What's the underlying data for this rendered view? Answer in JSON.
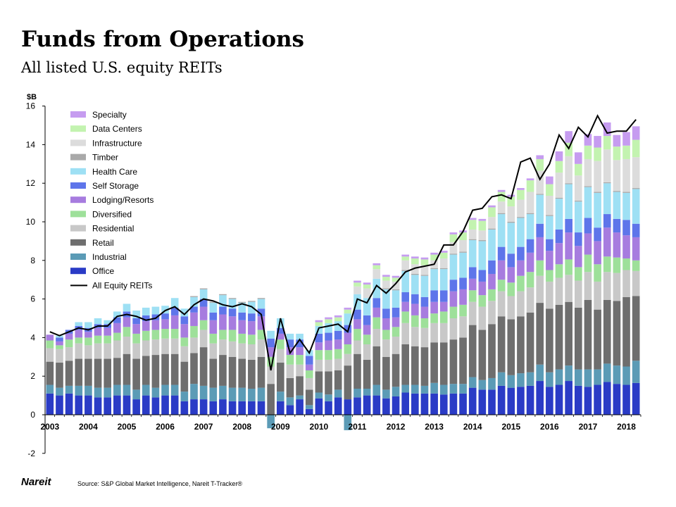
{
  "title": "Funds from Operations",
  "subtitle": "All listed U.S. equity REITs",
  "footer": {
    "logo": "Nareit",
    "source": "Source: S&P Global Market Intelligence, Nareit T-Tracker®"
  },
  "chart_data": {
    "type": "bar",
    "stacked": true,
    "ylabel": "$B",
    "ylim": [
      -2,
      16
    ],
    "yticks": [
      -2,
      0,
      2,
      4,
      6,
      8,
      10,
      12,
      14,
      16
    ],
    "grid": false,
    "legend_position": "top-left",
    "year_labels": [
      "2003",
      "2004",
      "2005",
      "2006",
      "2007",
      "2008",
      "2009",
      "2010",
      "2011",
      "2012",
      "2013",
      "2014",
      "2015",
      "2016",
      "2017",
      "2018"
    ],
    "quarters_per_year": 4,
    "series": [
      {
        "name": "Office",
        "color": "#2a3bc6",
        "values": [
          1.1,
          1.0,
          1.1,
          1.0,
          1.0,
          0.9,
          0.9,
          1.0,
          1.0,
          0.8,
          1.0,
          0.9,
          1.0,
          1.0,
          0.7,
          0.8,
          0.8,
          0.7,
          0.8,
          0.7,
          0.7,
          0.7,
          0.7,
          0.0,
          0.7,
          0.5,
          0.8,
          0.3,
          0.85,
          0.7,
          0.9,
          0.8,
          0.9,
          1.0,
          1.0,
          0.85,
          0.95,
          1.15,
          1.1,
          1.1,
          1.1,
          1.05,
          1.1,
          1.1,
          1.4,
          1.3,
          1.3,
          1.5,
          1.4,
          1.45,
          1.5,
          1.75,
          1.45,
          1.55,
          1.75,
          1.5,
          1.45,
          1.55,
          1.7,
          1.6,
          1.55,
          1.65
        ]
      },
      {
        "name": "Industrial",
        "color": "#5b9bb6",
        "values": [
          0.45,
          0.4,
          0.4,
          0.5,
          0.5,
          0.5,
          0.5,
          0.55,
          0.55,
          0.5,
          0.55,
          0.5,
          0.55,
          0.55,
          0.5,
          0.8,
          0.7,
          0.7,
          0.7,
          0.7,
          0.7,
          0.65,
          0.7,
          -0.7,
          0.5,
          0.4,
          0.2,
          0.2,
          0.3,
          0.35,
          0.4,
          -0.8,
          0.45,
          0.35,
          0.55,
          0.45,
          0.5,
          0.4,
          0.45,
          0.4,
          0.55,
          0.5,
          0.5,
          0.5,
          0.55,
          0.5,
          0.6,
          0.7,
          0.65,
          0.7,
          0.7,
          0.85,
          0.75,
          0.8,
          0.8,
          0.85,
          0.9,
          0.8,
          0.95,
          0.95,
          0.95,
          1.15
        ]
      },
      {
        "name": "Retail",
        "color": "#6e6e6e",
        "values": [
          1.2,
          1.3,
          1.3,
          1.4,
          1.4,
          1.5,
          1.5,
          1.4,
          1.6,
          1.6,
          1.5,
          1.7,
          1.6,
          1.6,
          1.55,
          1.6,
          2.0,
          1.5,
          1.6,
          1.6,
          1.5,
          1.5,
          1.6,
          1.6,
          1.5,
          1.0,
          1.0,
          0.8,
          1.1,
          1.2,
          1.0,
          1.75,
          1.8,
          1.5,
          2.0,
          1.7,
          1.7,
          2.1,
          2.0,
          2.0,
          2.1,
          2.2,
          2.3,
          2.4,
          2.7,
          2.6,
          2.8,
          2.9,
          2.9,
          2.95,
          3.1,
          3.2,
          3.3,
          3.35,
          3.3,
          3.2,
          3.6,
          3.1,
          3.3,
          3.35,
          3.6,
          3.35
        ]
      },
      {
        "name": "Residential",
        "color": "#c8c8c8",
        "values": [
          0.7,
          0.7,
          0.7,
          0.8,
          0.7,
          0.8,
          0.8,
          0.9,
          0.9,
          0.8,
          0.8,
          0.8,
          0.8,
          0.8,
          0.8,
          0.8,
          0.9,
          0.8,
          0.8,
          0.8,
          0.8,
          0.8,
          0.9,
          0.9,
          0.7,
          0.7,
          0.6,
          0.6,
          0.6,
          0.6,
          0.6,
          0.6,
          0.7,
          0.8,
          0.9,
          0.9,
          0.9,
          1.1,
          1.0,
          1.0,
          1.0,
          1.0,
          1.1,
          1.1,
          1.2,
          1.2,
          1.2,
          1.3,
          1.2,
          1.3,
          1.3,
          1.4,
          1.4,
          1.4,
          1.4,
          1.4,
          1.45,
          1.45,
          1.45,
          1.45,
          1.4,
          1.3
        ]
      },
      {
        "name": "Diversified",
        "color": "#9ee09a",
        "values": [
          0.4,
          0.2,
          0.4,
          0.3,
          0.4,
          0.4,
          0.4,
          0.4,
          0.5,
          0.5,
          0.5,
          0.5,
          0.5,
          0.5,
          0.45,
          0.6,
          0.5,
          0.5,
          0.5,
          0.6,
          0.5,
          0.5,
          0.5,
          0.5,
          0.5,
          0.5,
          0.5,
          0.4,
          0.5,
          0.5,
          0.5,
          0.5,
          0.6,
          0.5,
          0.6,
          0.5,
          0.5,
          0.6,
          0.6,
          0.5,
          0.5,
          0.6,
          0.6,
          0.6,
          0.6,
          0.6,
          0.6,
          0.6,
          0.7,
          0.8,
          0.8,
          0.8,
          0.6,
          0.7,
          0.8,
          0.7,
          0.9,
          0.9,
          0.8,
          0.8,
          0.6,
          0.55
        ]
      },
      {
        "name": "Lodging/Resorts",
        "color": "#a77cdf",
        "values": [
          0.3,
          0.2,
          0.3,
          0.4,
          0.3,
          0.4,
          0.4,
          0.5,
          0.5,
          0.5,
          0.5,
          0.5,
          0.5,
          0.7,
          0.7,
          0.7,
          0.7,
          0.7,
          0.8,
          0.7,
          0.7,
          0.7,
          0.7,
          0.5,
          0.3,
          0.4,
          0.4,
          0.3,
          0.4,
          0.5,
          0.5,
          0.6,
          0.5,
          0.5,
          0.5,
          0.6,
          0.5,
          0.5,
          0.6,
          0.6,
          0.6,
          0.5,
          0.8,
          0.8,
          0.6,
          0.7,
          0.8,
          1.0,
          0.8,
          0.8,
          1.0,
          1.2,
          1.0,
          1.1,
          1.4,
          1.1,
          1.1,
          1.2,
          1.5,
          1.3,
          1.2,
          1.2
        ]
      },
      {
        "name": "Self Storage",
        "color": "#5e75ea",
        "values": [
          0.0,
          0.2,
          0.2,
          0.2,
          0.2,
          0.2,
          0.2,
          0.3,
          0.3,
          0.3,
          0.3,
          0.3,
          0.3,
          0.4,
          0.4,
          0.3,
          0.4,
          0.4,
          0.4,
          0.4,
          0.4,
          0.4,
          0.4,
          0.45,
          0.3,
          0.4,
          0.4,
          0.45,
          0.45,
          0.4,
          0.45,
          0.4,
          0.5,
          0.5,
          0.5,
          0.5,
          0.5,
          0.5,
          0.5,
          0.5,
          0.6,
          0.6,
          0.6,
          0.6,
          0.6,
          0.6,
          0.7,
          0.7,
          0.7,
          0.7,
          0.7,
          0.7,
          0.6,
          0.7,
          0.7,
          0.7,
          0.8,
          0.7,
          0.7,
          0.7,
          0.8,
          0.7
        ]
      },
      {
        "name": "Health Care",
        "color": "#9ee0f4",
        "values": [
          0.0,
          0.1,
          0.0,
          0.2,
          0.3,
          0.3,
          0.2,
          0.3,
          0.4,
          0.4,
          0.4,
          0.4,
          0.4,
          0.5,
          0.4,
          0.5,
          0.5,
          0.5,
          0.6,
          0.5,
          0.5,
          0.6,
          0.5,
          0.4,
          0.5,
          0.3,
          0.3,
          0.3,
          0.4,
          0.5,
          0.5,
          0.6,
          0.8,
          0.9,
          1.0,
          1.0,
          0.9,
          1.1,
          1.0,
          1.1,
          1.1,
          1.1,
          1.3,
          1.3,
          1.4,
          1.5,
          1.6,
          1.7,
          1.6,
          1.5,
          1.3,
          1.5,
          1.2,
          1.6,
          1.8,
          1.6,
          1.6,
          1.8,
          1.6,
          1.4,
          1.4,
          1.8
        ]
      },
      {
        "name": "Timber",
        "color": "#a9a9a9",
        "values": [
          0.0,
          0.0,
          0.0,
          0.0,
          0.0,
          0.0,
          0.0,
          0.0,
          0.0,
          0.0,
          0.0,
          0.0,
          0.0,
          0.0,
          0.0,
          0.05,
          0.05,
          0.05,
          0.05,
          0.05,
          0.05,
          0.05,
          0.05,
          0.0,
          0.0,
          0.0,
          0.0,
          0.0,
          0.0,
          0.0,
          0.0,
          0.0,
          0.0,
          0.0,
          0.0,
          0.05,
          0.05,
          0.05,
          0.05,
          0.05,
          0.05,
          0.05,
          0.05,
          0.05,
          0.05,
          0.05,
          0.05,
          0.05,
          0.05,
          0.05,
          0.05,
          0.05,
          0.05,
          0.05,
          0.05,
          0.05,
          0.05,
          0.05,
          0.05,
          0.05,
          0.05,
          0.05
        ]
      },
      {
        "name": "Infrastructure",
        "color": "#dcdcdc",
        "values": [
          0.0,
          0.0,
          0.0,
          0.0,
          0.0,
          0.0,
          0.0,
          0.0,
          0.0,
          0.0,
          0.0,
          0.0,
          0.0,
          0.0,
          0.0,
          0.0,
          0.0,
          0.0,
          0.0,
          0.0,
          0.0,
          0.0,
          0.0,
          0.0,
          0.0,
          0.0,
          0.0,
          0.0,
          0.0,
          0.0,
          0.0,
          0.0,
          0.4,
          0.5,
          0.5,
          0.4,
          0.4,
          0.5,
          0.5,
          0.5,
          0.4,
          0.5,
          0.6,
          0.6,
          0.5,
          0.5,
          0.6,
          0.6,
          0.8,
          0.9,
          1.1,
          1.2,
          1.0,
          1.3,
          1.4,
          1.3,
          1.4,
          1.6,
          1.7,
          1.6,
          1.7,
          1.6
        ]
      },
      {
        "name": "Data Centers",
        "color": "#c3f3b0",
        "values": [
          0.0,
          0.0,
          0.0,
          0.0,
          0.0,
          0.0,
          0.0,
          0.0,
          0.0,
          0.0,
          0.0,
          0.0,
          0.0,
          0.0,
          0.0,
          0.0,
          0.0,
          0.0,
          0.0,
          0.0,
          0.0,
          0.0,
          0.0,
          0.0,
          0.0,
          0.0,
          0.0,
          0.0,
          0.2,
          0.2,
          0.2,
          0.2,
          0.2,
          0.2,
          0.2,
          0.2,
          0.2,
          0.2,
          0.3,
          0.3,
          0.3,
          0.3,
          0.4,
          0.4,
          0.5,
          0.5,
          0.5,
          0.5,
          0.5,
          0.5,
          0.6,
          0.6,
          0.6,
          0.6,
          0.7,
          0.6,
          0.7,
          0.7,
          0.7,
          0.7,
          0.7,
          0.9
        ]
      },
      {
        "name": "Specialty",
        "color": "#c69cf0",
        "values": [
          0.0,
          0.0,
          0.0,
          0.0,
          0.0,
          0.0,
          0.0,
          0.0,
          0.0,
          0.0,
          0.0,
          0.0,
          0.0,
          0.0,
          0.0,
          0.0,
          0.0,
          0.0,
          0.0,
          0.0,
          0.0,
          0.0,
          0.0,
          0.0,
          0.0,
          0.0,
          0.0,
          0.0,
          0.1,
          0.1,
          0.1,
          0.1,
          0.1,
          0.1,
          0.1,
          0.1,
          0.1,
          0.1,
          0.1,
          0.1,
          0.1,
          0.1,
          0.1,
          0.1,
          0.1,
          0.1,
          0.1,
          0.1,
          0.1,
          0.1,
          0.1,
          0.2,
          0.4,
          0.5,
          0.6,
          0.6,
          0.6,
          0.6,
          0.7,
          0.6,
          0.7,
          0.7
        ]
      }
    ],
    "line": {
      "name": "All Equity REITs",
      "color": "#000000",
      "values": [
        4.3,
        4.1,
        4.3,
        4.5,
        4.4,
        4.6,
        4.6,
        5.1,
        5.2,
        5.1,
        4.9,
        5.0,
        5.4,
        5.6,
        5.2,
        5.7,
        6.0,
        5.9,
        5.7,
        5.6,
        5.75,
        5.6,
        5.2,
        2.3,
        5.0,
        3.2,
        3.9,
        3.2,
        4.5,
        4.6,
        4.7,
        4.3,
        6.0,
        5.8,
        6.7,
        6.3,
        6.8,
        7.4,
        7.6,
        7.7,
        7.8,
        8.8,
        8.8,
        9.5,
        10.6,
        10.7,
        11.3,
        11.4,
        11.2,
        13.1,
        13.3,
        12.2,
        13.0,
        14.5,
        13.8,
        14.9,
        14.4,
        15.5,
        14.6,
        14.7,
        14.7,
        15.3
      ]
    }
  }
}
